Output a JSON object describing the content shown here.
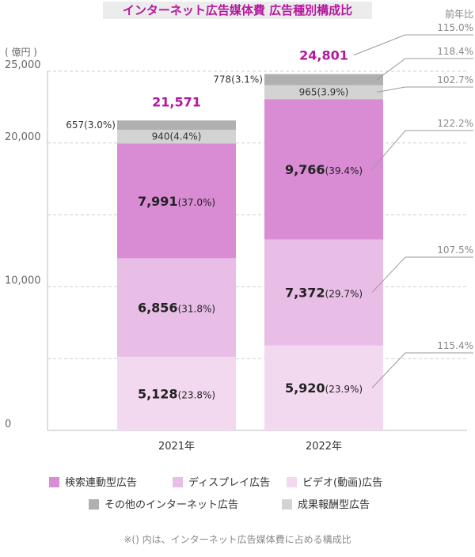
{
  "title": "インターネット広告媒体費 広告種別構成比",
  "unit_label": "( 億円 )",
  "yoy_header": "前年比",
  "note": "※() 内は、インターネット広告媒体費に占める構成比",
  "chart_data": {
    "type": "bar",
    "stacked": true,
    "categories": [
      "2021年",
      "2022年"
    ],
    "ylim": [
      0,
      25000
    ],
    "yticks": [
      "0",
      "10,000",
      "20,000",
      "25,000"
    ],
    "ytick_values": [
      0,
      10000,
      20000,
      25000
    ],
    "grid_values": [
      5000,
      10000,
      15000,
      20000,
      25000
    ],
    "totals": [
      "21,571",
      "24,801"
    ],
    "total_values": [
      21571,
      24801
    ],
    "series": [
      {
        "name": "ビデオ(動画)広告",
        "color": "#f3d9f0",
        "values": [
          5128,
          5920
        ],
        "labels": [
          "5,128",
          "5,920"
        ],
        "shares": [
          "(23.8%)",
          "(23.9%)"
        ],
        "yoy": "115.4%"
      },
      {
        "name": "ディスプレイ広告",
        "color": "#e8bde6",
        "values": [
          6856,
          7372
        ],
        "labels": [
          "6,856",
          "7,372"
        ],
        "shares": [
          "(31.8%)",
          "(29.7%)"
        ],
        "yoy": "107.5%"
      },
      {
        "name": "検索連動型広告",
        "color": "#d98bd4",
        "values": [
          7991,
          9766
        ],
        "labels": [
          "7,991",
          "9,766"
        ],
        "shares": [
          "(37.0%)",
          "(39.4%)"
        ],
        "yoy": "122.2%"
      },
      {
        "name": "成果報酬型広告",
        "color": "#d3d3d3",
        "values": [
          940,
          965
        ],
        "labels": [
          "940",
          "965"
        ],
        "shares": [
          "(4.4%)",
          "(3.9%)"
        ],
        "yoy": "102.7%"
      },
      {
        "name": "その他のインターネット広告",
        "color": "#b0b0b0",
        "values": [
          657,
          778
        ],
        "labels": [
          "657",
          "778"
        ],
        "shares": [
          "(3.0%)",
          "(3.1%)"
        ],
        "yoy": "118.4%"
      }
    ],
    "total_yoy": "115.0%",
    "legend_order": [
      2,
      1,
      0,
      4,
      3
    ],
    "legend_placement": "bottom"
  }
}
